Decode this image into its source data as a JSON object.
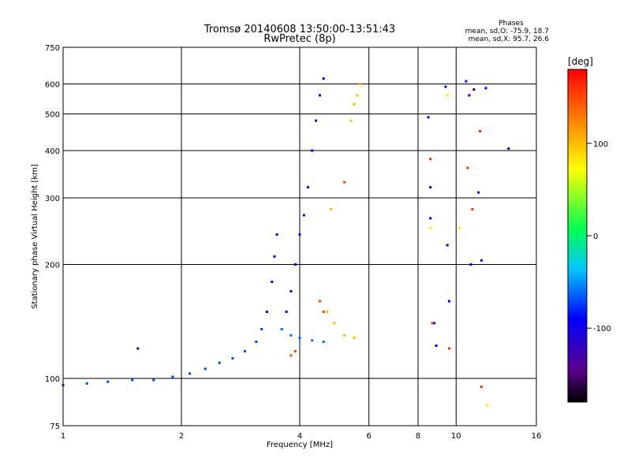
{
  "chart_data": {
    "type": "scatter",
    "title": "Tromsø 20140608 13:50:00-13:51:43",
    "subtitle": "RwPretec (8p)",
    "stats": {
      "heading": "Phases",
      "line_o": "mean, sd,O: -75.9, 18.7",
      "line_x": "mean, sd,X:  95.7, 26.6"
    },
    "xlabel": "Frequency [MHz]",
    "ylabel": "Stationary phase Virtual Height [km]",
    "x_scale": "log",
    "y_scale": "log",
    "xlim": [
      1,
      16
    ],
    "ylim": [
      75,
      750
    ],
    "x_ticks": [
      1,
      2,
      4,
      6,
      8,
      10,
      16
    ],
    "x_tick_labels": [
      "1",
      "2",
      "4",
      "6",
      "8",
      "10",
      "16"
    ],
    "y_ticks": [
      75,
      100,
      200,
      300,
      400,
      500,
      600,
      750
    ],
    "y_tick_labels": [
      "75",
      "100",
      "200",
      "300",
      "400",
      "500",
      "600",
      "750"
    ],
    "grid": true,
    "colorbar": {
      "label": "[deg]",
      "range": [
        -180,
        180
      ],
      "ticks": [
        100,
        0,
        -100
      ],
      "tick_labels": [
        "100",
        "0",
        "-100"
      ]
    },
    "point_groups": [
      {
        "phase": -70,
        "points": [
          [
            1.0,
            96
          ],
          [
            1.15,
            97
          ],
          [
            1.3,
            98
          ],
          [
            1.5,
            99
          ],
          [
            1.7,
            99
          ],
          [
            1.9,
            101
          ],
          [
            2.1,
            103
          ],
          [
            2.3,
            106
          ],
          [
            2.5,
            110
          ],
          [
            2.7,
            113
          ],
          [
            2.9,
            118
          ],
          [
            3.1,
            125
          ],
          [
            3.2,
            135
          ]
        ]
      },
      {
        "phase": -90,
        "points": [
          [
            3.3,
            150
          ],
          [
            3.4,
            180
          ],
          [
            3.45,
            210
          ],
          [
            3.5,
            240
          ],
          [
            3.7,
            150
          ],
          [
            3.8,
            170
          ],
          [
            3.9,
            200
          ],
          [
            4.0,
            240
          ],
          [
            4.1,
            270
          ],
          [
            4.2,
            320
          ],
          [
            4.3,
            400
          ],
          [
            4.4,
            480
          ],
          [
            4.5,
            560
          ],
          [
            4.6,
            620
          ]
        ]
      },
      {
        "phase": -60,
        "points": [
          [
            3.6,
            135
          ],
          [
            3.8,
            130
          ],
          [
            4.0,
            128
          ],
          [
            4.3,
            126
          ],
          [
            4.6,
            125
          ]
        ]
      },
      {
        "phase": 100,
        "points": [
          [
            4.7,
            150
          ],
          [
            4.9,
            140
          ],
          [
            5.2,
            130
          ],
          [
            5.5,
            128
          ],
          [
            5.6,
            560
          ],
          [
            5.7,
            600
          ],
          [
            5.5,
            530
          ],
          [
            5.4,
            480
          ],
          [
            4.8,
            280
          ]
        ]
      },
      {
        "phase": 150,
        "points": [
          [
            3.8,
            115
          ],
          [
            3.9,
            118
          ],
          [
            4.5,
            160
          ],
          [
            4.6,
            150
          ],
          [
            5.2,
            330
          ]
        ]
      },
      {
        "phase": -90,
        "points": [
          [
            8.5,
            490
          ],
          [
            8.6,
            320
          ],
          [
            8.6,
            265
          ],
          [
            8.8,
            140
          ],
          [
            8.9,
            122
          ],
          [
            9.4,
            590
          ],
          [
            9.5,
            225
          ],
          [
            9.6,
            160
          ],
          [
            10.6,
            610
          ],
          [
            10.8,
            560
          ],
          [
            10.9,
            200
          ],
          [
            11.4,
            310
          ],
          [
            11.6,
            205
          ],
          [
            11.9,
            585
          ],
          [
            13.6,
            405
          ]
        ]
      },
      {
        "phase": 160,
        "points": [
          [
            8.6,
            380
          ],
          [
            8.7,
            140
          ],
          [
            9.6,
            120
          ],
          [
            10.7,
            360
          ],
          [
            11.0,
            280
          ],
          [
            11.6,
            95
          ],
          [
            11.5,
            450
          ]
        ]
      },
      {
        "phase": 80,
        "points": [
          [
            8.6,
            250
          ],
          [
            9.5,
            560
          ],
          [
            10.2,
            250
          ],
          [
            12.0,
            85
          ]
        ]
      },
      {
        "phase": -160,
        "points": [
          [
            1.55,
            120
          ],
          [
            11.1,
            580
          ]
        ]
      }
    ]
  }
}
